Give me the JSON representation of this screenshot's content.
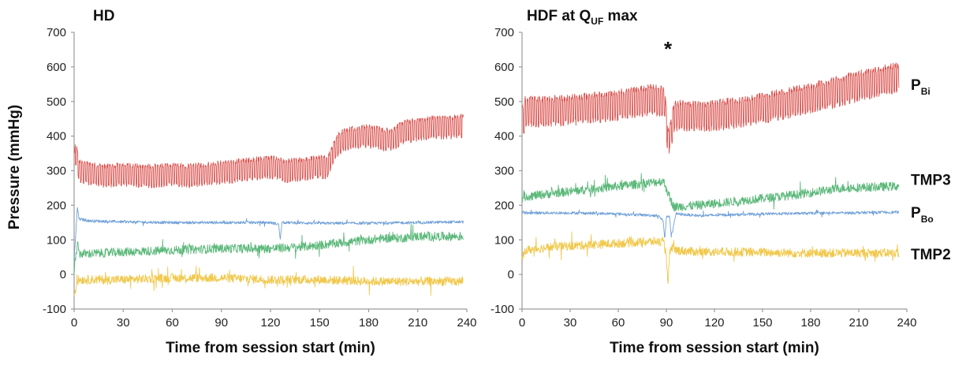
{
  "y_axis_label": "Pressure (mmHg)",
  "chart_data": [
    {
      "type": "line",
      "title": "HD",
      "xlabel": "Time from session start (min)",
      "ylabel": "Pressure (mmHg)",
      "xlim": [
        0,
        240
      ],
      "ylim": [
        -100,
        700
      ],
      "xticks": [
        "0",
        "30",
        "60",
        "90",
        "120",
        "150",
        "180",
        "210",
        "240"
      ],
      "yticks": [
        "-100",
        "0",
        "100",
        "200",
        "300",
        "400",
        "500",
        "600",
        "700"
      ],
      "grid": false,
      "series": [
        {
          "name": "PBi",
          "color": "#d9534f",
          "osc": "high",
          "osc_scale": 1.0,
          "x": [
            0,
            1,
            3,
            10,
            20,
            30,
            40,
            50,
            60,
            70,
            80,
            90,
            100,
            110,
            120,
            130,
            140,
            150,
            155,
            160,
            165,
            170,
            180,
            190,
            195,
            200,
            210,
            220,
            230,
            238
          ],
          "y": [
            320,
            350,
            300,
            290,
            285,
            290,
            285,
            285,
            290,
            285,
            290,
            295,
            300,
            305,
            310,
            300,
            305,
            310,
            310,
            370,
            390,
            395,
            400,
            390,
            390,
            410,
            420,
            425,
            425,
            430
          ]
        },
        {
          "name": "PBo",
          "color": "#6fa0d8",
          "osc": "low",
          "osc_scale": 1.0,
          "x": [
            0,
            2,
            3,
            10,
            30,
            60,
            90,
            120,
            125,
            126,
            127,
            128,
            130,
            150,
            180,
            210,
            238
          ],
          "y": [
            40,
            195,
            160,
            155,
            152,
            150,
            150,
            150,
            145,
            100,
            150,
            150,
            150,
            148,
            148,
            150,
            152
          ]
        },
        {
          "name": "TMP3",
          "color": "#5cb87a",
          "osc": "mid",
          "osc_scale": 1.0,
          "x": [
            0,
            2,
            3,
            10,
            30,
            60,
            90,
            120,
            140,
            150,
            160,
            170,
            180,
            190,
            200,
            210,
            220,
            238
          ],
          "y": [
            10,
            90,
            60,
            60,
            65,
            70,
            75,
            75,
            80,
            85,
            90,
            95,
            100,
            105,
            105,
            110,
            110,
            110
          ]
        },
        {
          "name": "TMP2",
          "color": "#f1c84c",
          "osc": "mid",
          "osc_scale": 1.0,
          "x": [
            0,
            2,
            3,
            30,
            60,
            90,
            120,
            150,
            180,
            210,
            238
          ],
          "y": [
            -60,
            -20,
            -15,
            -15,
            -10,
            -10,
            -15,
            -15,
            -20,
            -20,
            -20
          ]
        }
      ]
    },
    {
      "type": "line",
      "title": "HDF at QUF max",
      "xlabel": "Time from session start (min)",
      "ylabel": "",
      "xlim": [
        0,
        240
      ],
      "ylim": [
        -100,
        700
      ],
      "xticks": [
        "0",
        "30",
        "60",
        "90",
        "120",
        "150",
        "180",
        "210",
        "240"
      ],
      "yticks": [
        "-100",
        "0",
        "100",
        "200",
        "300",
        "400",
        "500",
        "600",
        "700"
      ],
      "grid": false,
      "annotation": "*",
      "annotation_x": 91,
      "annotation_y": 650,
      "series": [
        {
          "name": "PBi",
          "color": "#d9534f",
          "osc": "high",
          "osc_scale": 1.3,
          "x": [
            0,
            1,
            2,
            10,
            30,
            60,
            80,
            89,
            91,
            93,
            95,
            110,
            130,
            150,
            170,
            190,
            210,
            230,
            235
          ],
          "y": [
            460,
            440,
            470,
            470,
            475,
            490,
            505,
            500,
            380,
            410,
            460,
            455,
            465,
            480,
            500,
            520,
            545,
            565,
            570
          ]
        },
        {
          "name": "TMP3",
          "color": "#5cb87a",
          "osc": "mid",
          "osc_scale": 1.0,
          "x": [
            0,
            2,
            20,
            40,
            60,
            80,
            88,
            90,
            92,
            95,
            110,
            140,
            170,
            200,
            235
          ],
          "y": [
            220,
            225,
            235,
            245,
            255,
            265,
            270,
            250,
            220,
            195,
            200,
            215,
            230,
            250,
            255
          ]
        },
        {
          "name": "PBo",
          "color": "#6fa0d8",
          "osc": "low",
          "osc_scale": 1.0,
          "x": [
            0,
            2,
            30,
            60,
            85,
            88,
            89,
            90,
            92,
            93,
            96,
            110,
            150,
            200,
            235
          ],
          "y": [
            180,
            178,
            178,
            175,
            170,
            155,
            100,
            165,
            170,
            110,
            175,
            170,
            175,
            178,
            180
          ]
        },
        {
          "name": "TMP2",
          "color": "#f1c84c",
          "osc": "mid",
          "osc_scale": 1.0,
          "x": [
            0,
            2,
            20,
            40,
            60,
            80,
            88,
            90,
            91,
            92,
            94,
            96,
            110,
            140,
            170,
            200,
            235
          ],
          "y": [
            40,
            70,
            80,
            85,
            90,
            95,
            95,
            60,
            -40,
            60,
            80,
            70,
            65,
            65,
            62,
            62,
            62
          ]
        }
      ],
      "series_labels": [
        {
          "text": "P",
          "sub": "Bi",
          "value": 550
        },
        {
          "text": "TMP3",
          "sub": "",
          "value": 275
        },
        {
          "text": "P",
          "sub": "Bo",
          "value": 180
        },
        {
          "text": "TMP2",
          "sub": "",
          "value": 60
        }
      ]
    }
  ]
}
